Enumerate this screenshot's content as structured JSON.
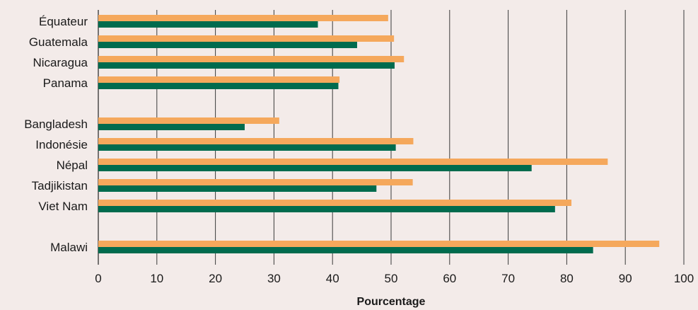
{
  "chart_data": {
    "type": "bar",
    "orientation": "horizontal",
    "categories": [
      "Équateur",
      "Guatemala",
      "Nicaragua",
      "Panama",
      "Bangladesh",
      "Indonésie",
      "Népal",
      "Tadjikistan",
      "Viet Nam",
      "Malawi"
    ],
    "series": [
      {
        "values": [
          49.5,
          50.5,
          52.2,
          41.2,
          30.9,
          53.8,
          87.0,
          53.7,
          80.8,
          95.8
        ]
      },
      {
        "values": [
          37.5,
          44.2,
          50.6,
          41.0,
          25.0,
          50.8,
          74.0,
          47.5,
          78.0,
          84.5
        ]
      }
    ],
    "colors": [
      "#f5a85c",
      "#006b4e"
    ],
    "groups": [
      [
        "Équateur",
        "Guatemala",
        "Nicaragua",
        "Panama"
      ],
      [
        "Bangladesh",
        "Indonésie",
        "Népal",
        "Tadjikistan",
        "Viet Nam"
      ],
      [
        "Malawi"
      ]
    ],
    "xlabel": "Pourcentage",
    "xlim": [
      0,
      100
    ],
    "xticks": [
      "0",
      "10",
      "20",
      "30",
      "40",
      "50",
      "60",
      "70",
      "80",
      "90",
      "100"
    ],
    "grid": "vertical"
  }
}
